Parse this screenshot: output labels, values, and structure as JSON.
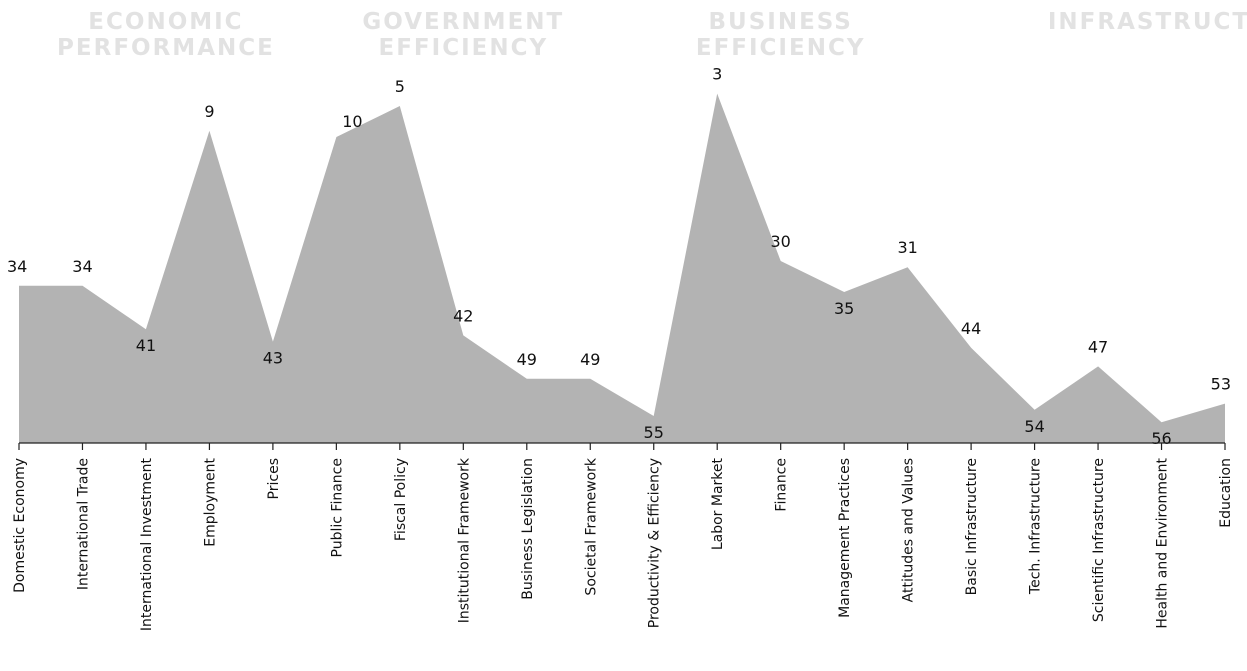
{
  "chart_data": {
    "type": "area",
    "title": "",
    "xlabel": "",
    "ylabel": "",
    "y_direction": "rank (lower value plotted higher)",
    "ylim": [
      0,
      60
    ],
    "grid": false,
    "area_color": "#b3b3b3",
    "group_label_color": "#e2e2e2",
    "groups": [
      {
        "title_lines": [
          "ECONOMIC",
          "PERFORMANCE"
        ],
        "range": [
          0,
          4
        ]
      },
      {
        "title_lines": [
          "GOVERNMENT",
          "EFFICIENCY"
        ],
        "range": [
          5,
          9
        ]
      },
      {
        "title_lines": [
          "BUSINESS",
          "EFFICIENCY"
        ],
        "range": [
          10,
          14
        ]
      },
      {
        "title_lines": [
          "INFRASTRUCTURE"
        ],
        "range": [
          15,
          19
        ]
      }
    ],
    "categories": [
      "Domestic Economy",
      "International Trade",
      "International Investment",
      "Employment",
      "Prices",
      "Public Finance",
      "Fiscal Policy",
      "Institutional Framework",
      "Business Legislation",
      "Societal Framework",
      "Productivity & Efficiency",
      "Labor Market",
      "Finance",
      "Management Practices",
      "Attitudes and Values",
      "Basic Infrastructure",
      "Tech. Infrastructure",
      "Scientific Infrastructure",
      "Health and Environment",
      "Education"
    ],
    "values": [
      34,
      34,
      41,
      9,
      43,
      10,
      5,
      42,
      49,
      49,
      55,
      3,
      30,
      35,
      31,
      44,
      54,
      47,
      56,
      53
    ],
    "label_positions": [
      "above",
      "above",
      "below",
      "above",
      "below",
      "left",
      "above",
      "above",
      "above",
      "above",
      "below",
      "above",
      "above",
      "below",
      "above",
      "above",
      "below",
      "above",
      "below",
      "above"
    ]
  }
}
